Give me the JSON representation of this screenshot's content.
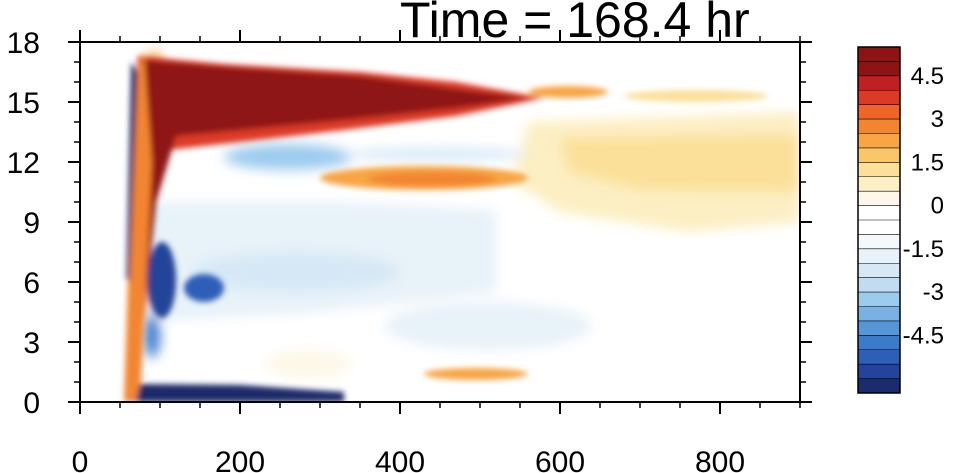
{
  "chart_data": {
    "type": "heatmap",
    "title": "Time = 168.4 hr",
    "xlabel": "",
    "ylabel": "",
    "xlim": [
      0,
      900
    ],
    "ylim": [
      0,
      18
    ],
    "x_ticks": [
      "0",
      "200",
      "400",
      "600",
      "800"
    ],
    "y_ticks": [
      "0",
      "3",
      "6",
      "9",
      "12",
      "15",
      "18"
    ],
    "colorbar": {
      "labels": [
        "4.5",
        "3",
        "1.5",
        "0",
        "-1.5",
        "-3",
        "-4.5"
      ],
      "levels": [
        -5.5,
        -5,
        -4.5,
        -4,
        -3.5,
        -3,
        -2.5,
        -2,
        -1.5,
        -1,
        -0.5,
        0,
        0.5,
        1,
        1.5,
        2,
        2.5,
        3,
        3.5,
        4,
        4.5,
        5,
        5.5
      ],
      "colors": [
        "#1a2c6b",
        "#23449a",
        "#2d5fb8",
        "#3a7bcc",
        "#5796d6",
        "#78b1e2",
        "#9ccbee",
        "#bfdcf2",
        "#d6e8f5",
        "#e8f2f9",
        "#f4f9fc",
        "#ffffff",
        "#ffffff",
        "#fdf8e8",
        "#fcefc3",
        "#fbe099",
        "#f9c66a",
        "#f7a545",
        "#f38530",
        "#ee6526",
        "#dd3a25",
        "#c21f22",
        "#8e1414",
        "#8e1414"
      ]
    },
    "features": [
      {
        "name": "upper positive band",
        "x": [
          75,
          580
        ],
        "y": [
          12.5,
          17.2
        ],
        "peak": 5.5
      },
      {
        "name": "near-surface negative band",
        "x": [
          70,
          330
        ],
        "y": [
          0,
          0.8
        ],
        "peak": -5.5
      },
      {
        "name": "mid-level positive band",
        "x": [
          300,
          560
        ],
        "y": [
          10.5,
          11.8
        ],
        "peak": 3
      },
      {
        "name": "upper-right weak positive",
        "x": [
          550,
          900
        ],
        "y": [
          9,
          14
        ],
        "peak": 1.5
      }
    ]
  }
}
